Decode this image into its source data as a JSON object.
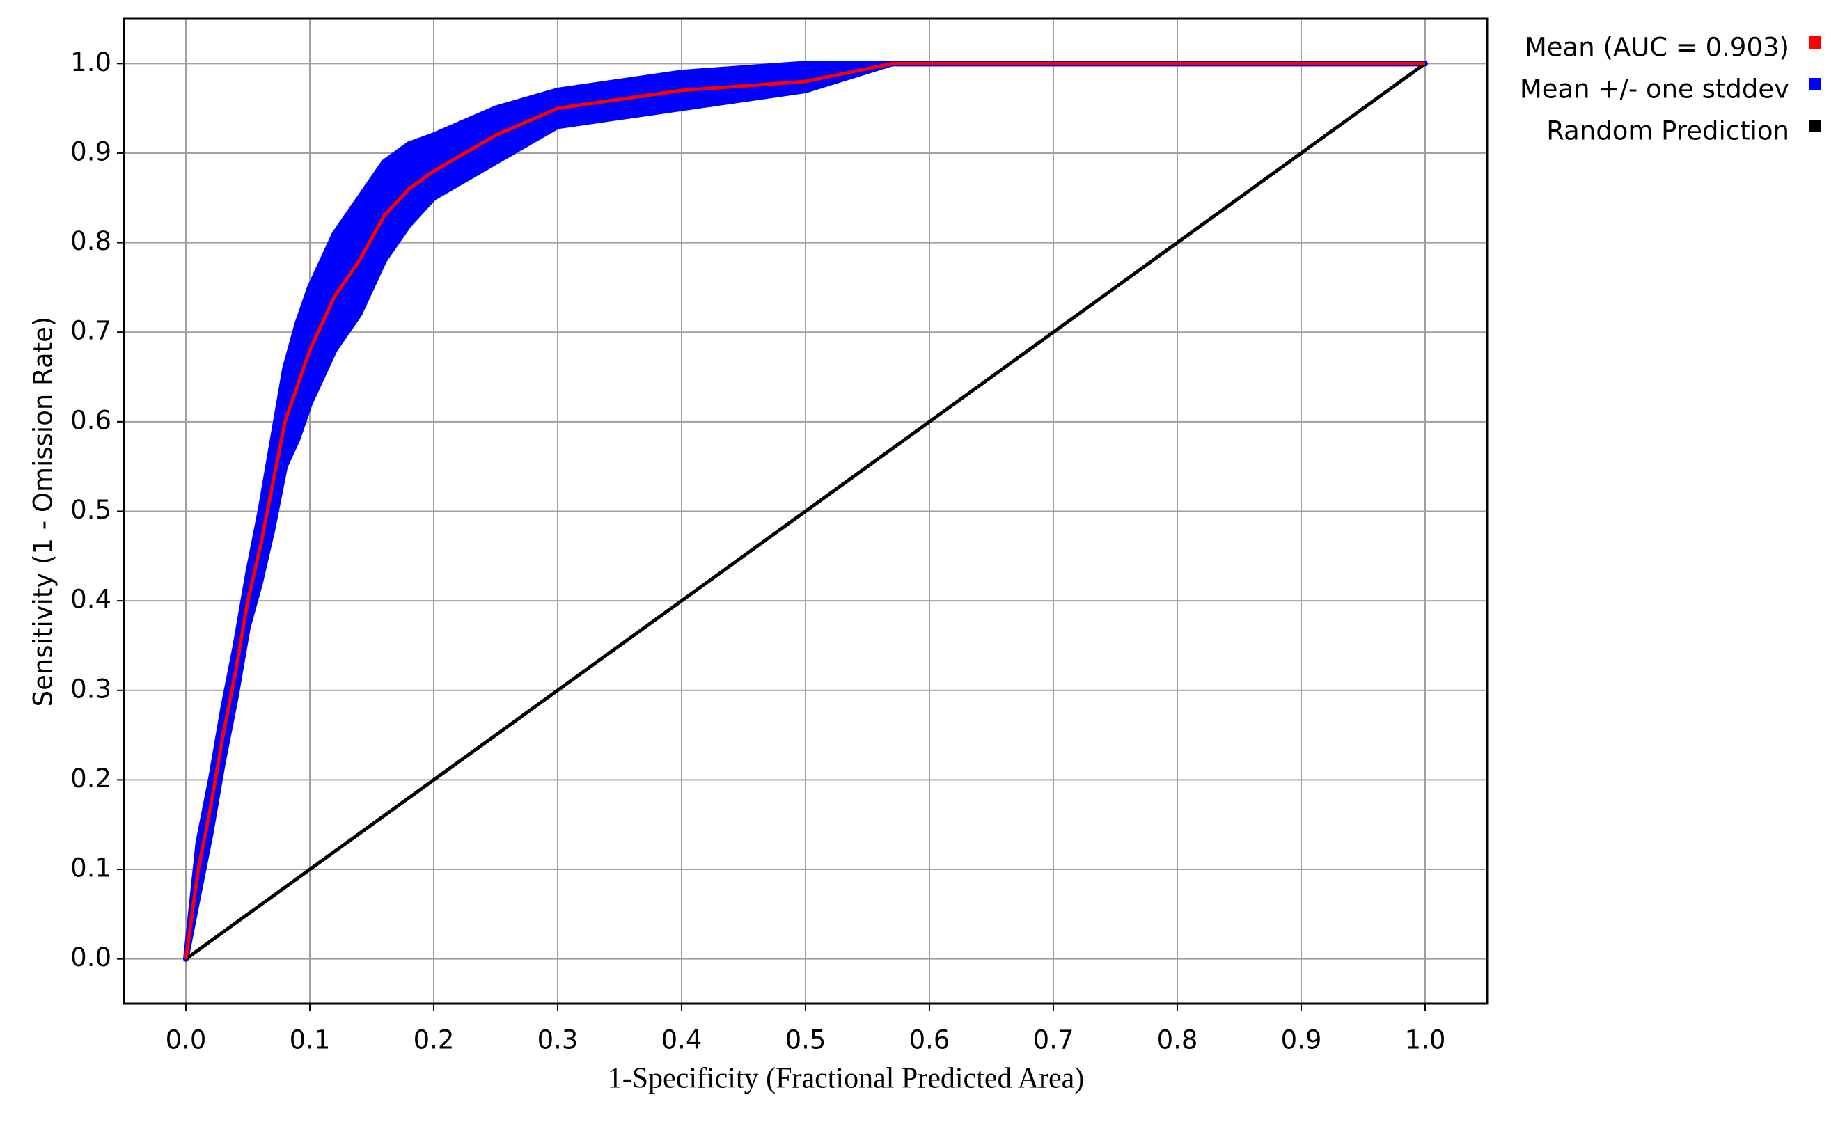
{
  "chart_data": {
    "type": "line",
    "xlabel": "1-Specificity (Fractional Predicted Area)",
    "ylabel": "Sensitivity (1 - Omission Rate)",
    "xlim": [
      -0.05,
      1.05
    ],
    "ylim": [
      -0.05,
      1.05
    ],
    "xticks": [
      {
        "value": 0,
        "label": "0.0"
      },
      0.1,
      0.2,
      0.3,
      0.4,
      0.5,
      0.6,
      0.7,
      0.8,
      0.9,
      {
        "value": 1,
        "label": "1.0"
      }
    ],
    "yticks": [
      {
        "value": 0,
        "label": "0.0"
      },
      0.1,
      0.2,
      0.3,
      0.4,
      0.5,
      0.6,
      0.7,
      0.8,
      0.9,
      {
        "value": 1,
        "label": "1.0"
      }
    ],
    "grid": true,
    "legend": "top-right",
    "series": [
      {
        "name": "Mean (AUC = 0.903)",
        "color": "#ff0000",
        "x": [
          0,
          0.01,
          0.02,
          0.03,
          0.04,
          0.05,
          0.06,
          0.07,
          0.08,
          0.09,
          0.1,
          0.12,
          0.14,
          0.16,
          0.18,
          0.2,
          0.25,
          0.3,
          0.35,
          0.4,
          0.5,
          0.57,
          0.7,
          1
        ],
        "values": [
          0,
          0.1,
          0.17,
          0.25,
          0.32,
          0.4,
          0.46,
          0.53,
          0.6,
          0.64,
          0.68,
          0.74,
          0.78,
          0.83,
          0.86,
          0.88,
          0.92,
          0.95,
          0.96,
          0.97,
          0.98,
          1,
          1,
          1
        ]
      },
      {
        "name": "Mean +/- one stddev",
        "color": "#0000ff",
        "x": [
          0,
          0.01,
          0.02,
          0.03,
          0.04,
          0.05,
          0.06,
          0.07,
          0.08,
          0.09,
          0.1,
          0.12,
          0.14,
          0.16,
          0.18,
          0.2,
          0.25,
          0.3,
          0.35,
          0.4,
          0.5,
          0.57,
          0.7,
          1
        ],
        "upper": [
          0,
          0.13,
          0.2,
          0.28,
          0.35,
          0.43,
          0.5,
          0.58,
          0.66,
          0.71,
          0.75,
          0.81,
          0.85,
          0.89,
          0.91,
          0.92,
          0.95,
          0.97,
          0.98,
          0.99,
          1,
          1,
          1,
          1
        ],
        "lower": [
          0,
          0.07,
          0.14,
          0.22,
          0.29,
          0.37,
          0.42,
          0.48,
          0.55,
          0.58,
          0.62,
          0.68,
          0.72,
          0.78,
          0.82,
          0.85,
          0.89,
          0.93,
          0.94,
          0.95,
          0.97,
          1,
          1,
          1
        ]
      },
      {
        "name": "Random Prediction",
        "color": "#000000",
        "x": [
          0,
          1
        ],
        "values": [
          0,
          1
        ]
      }
    ]
  }
}
